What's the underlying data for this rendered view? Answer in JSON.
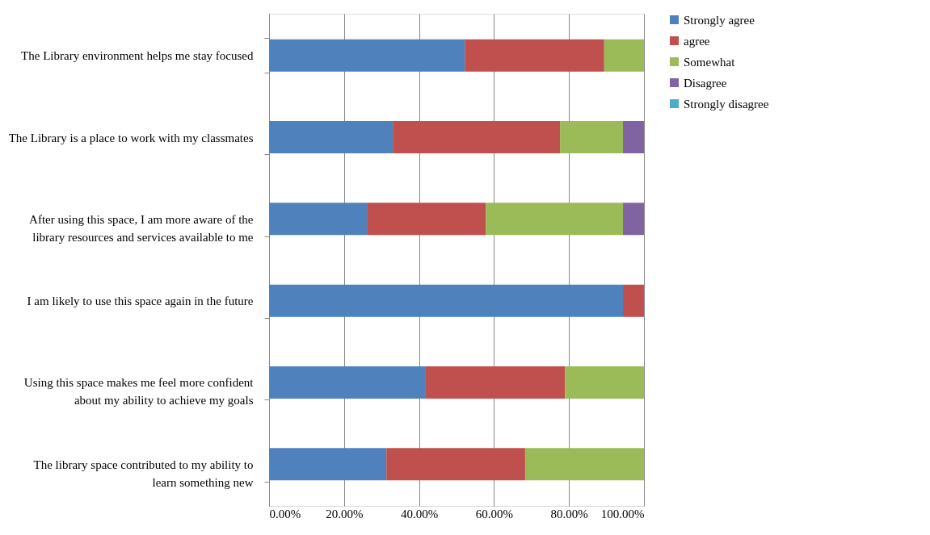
{
  "chart_data": {
    "type": "bar",
    "orientation": "horizontal",
    "stacked": true,
    "categories": [
      "The Library environment helps me stay focused",
      "The Library is a place to work with my classmates",
      "After using this space, I am more aware of the library resources and services available to me",
      "I am likely to use this space again in the future",
      "Using this space makes me feel more confident about my ability to achieve my goals",
      "The library space contributed to my ability to learn something new"
    ],
    "series": [
      {
        "name": "Strongly agree",
        "color": "#4f81bd",
        "values": [
          52.2,
          33.0,
          26.1,
          94.4,
          41.8,
          31.3
        ]
      },
      {
        "name": "agree",
        "color": "#c0504d",
        "values": [
          37.2,
          44.6,
          31.7,
          5.6,
          37.1,
          37.0
        ]
      },
      {
        "name": "Somewhat",
        "color": "#9bbb59",
        "values": [
          10.6,
          16.8,
          36.6,
          null,
          21.1,
          31.7
        ]
      },
      {
        "name": "Disagree",
        "color": "#8064a2",
        "values": [
          null,
          5.6,
          5.6,
          null,
          null,
          null
        ]
      },
      {
        "name": "Strongly disagree",
        "color": "#4bacc6",
        "values": [
          null,
          null,
          null,
          null,
          null,
          null
        ]
      }
    ],
    "xlim": [
      0,
      100
    ],
    "xticks": [
      {
        "value": 0,
        "label": "0.00%"
      },
      {
        "value": 20,
        "label": "20.00%"
      },
      {
        "value": 40,
        "label": "40.00%"
      },
      {
        "value": 60,
        "label": "60.00%"
      },
      {
        "value": 80,
        "label": "80.00%"
      },
      {
        "value": 100,
        "label": "100.00%"
      }
    ],
    "grid": "x",
    "legend": "right"
  }
}
